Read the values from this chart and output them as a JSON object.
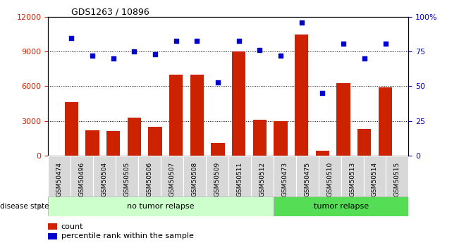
{
  "title": "GDS1263 / 10896",
  "categories": [
    "GSM50474",
    "GSM50496",
    "GSM50504",
    "GSM50505",
    "GSM50506",
    "GSM50507",
    "GSM50508",
    "GSM50509",
    "GSM50511",
    "GSM50512",
    "GSM50473",
    "GSM50475",
    "GSM50510",
    "GSM50513",
    "GSM50514",
    "GSM50515"
  ],
  "counts": [
    4600,
    2200,
    2100,
    3300,
    2500,
    7000,
    7000,
    1100,
    9000,
    3100,
    3000,
    10500,
    400,
    6300,
    2300,
    5900
  ],
  "percentiles": [
    85,
    72,
    70,
    75,
    73,
    83,
    83,
    53,
    83,
    76,
    72,
    96,
    45,
    81,
    70,
    81
  ],
  "no_tumor_count": 10,
  "tumor_count": 6,
  "bar_color": "#cc2200",
  "dot_color": "#0000cc",
  "plot_bg": "#ffffff",
  "xtick_bg": "#d8d8d8",
  "no_tumor_color": "#ccffcc",
  "tumor_color": "#55dd55",
  "ylim_left": [
    0,
    12000
  ],
  "ylim_right": [
    0,
    100
  ],
  "yticks_left": [
    0,
    3000,
    6000,
    9000,
    12000
  ],
  "yticks_right": [
    0,
    25,
    50,
    75,
    100
  ]
}
